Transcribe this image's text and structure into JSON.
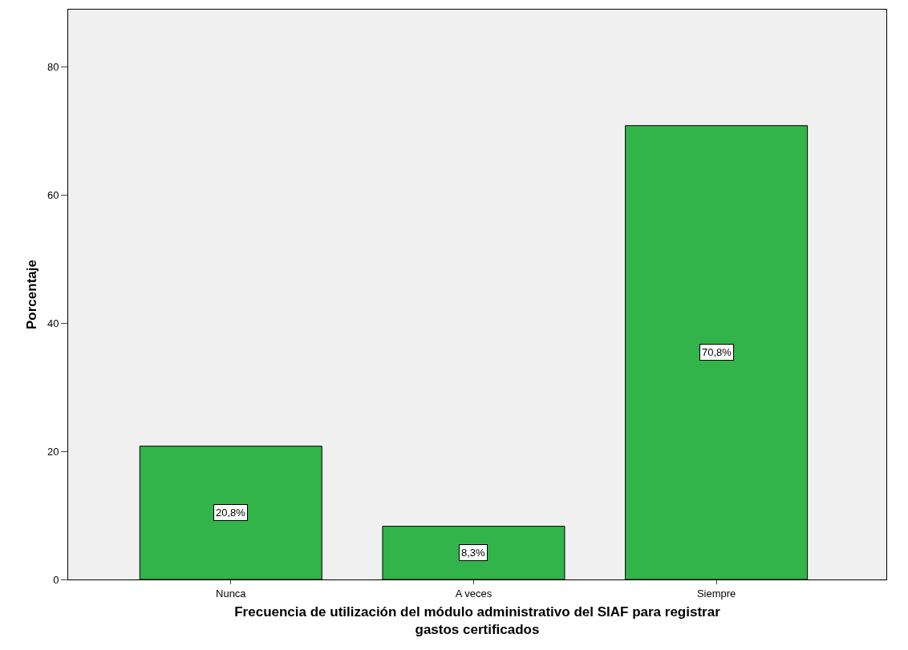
{
  "chart_data": {
    "type": "bar",
    "xlabel": "Frecuencia de utilización del módulo administrativo del SIAF para registrar gastos certificados",
    "ylabel": "Porcentaje",
    "categories": [
      "Nunca",
      "A veces",
      "Siempre"
    ],
    "values": [
      20.8,
      8.3,
      70.8
    ],
    "value_labels": [
      "20,8%",
      "8,3%",
      "70,8%"
    ],
    "color": "#33b44a",
    "ylim": [
      0,
      88.9
    ],
    "yticks": [
      0,
      20,
      40,
      60,
      80
    ],
    "grid": false
  }
}
